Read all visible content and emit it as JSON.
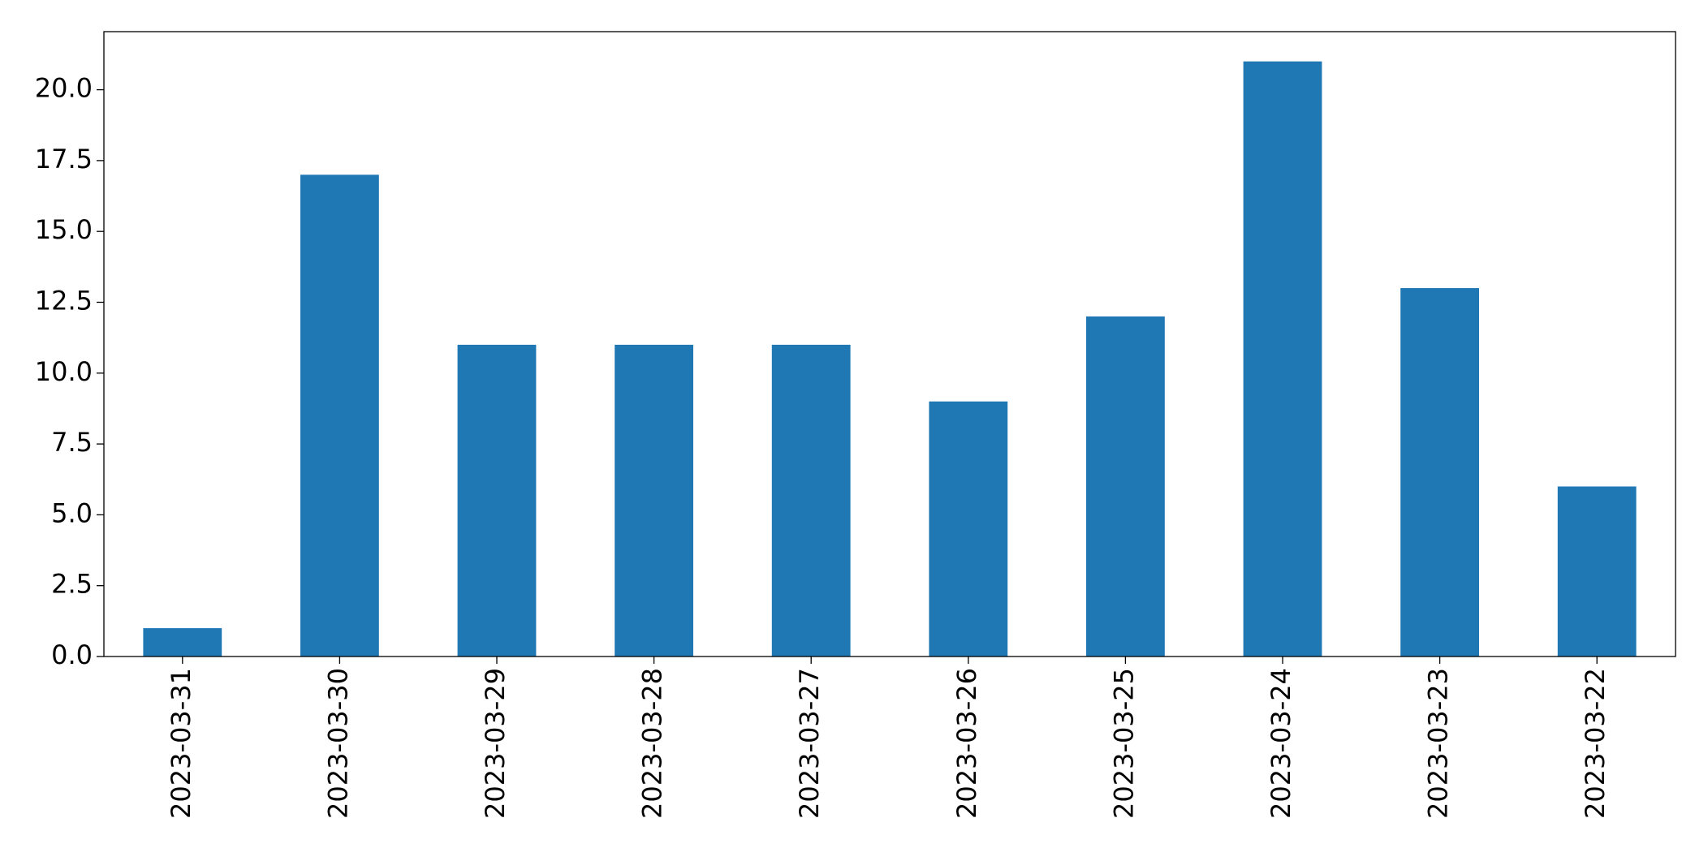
{
  "chart_data": {
    "type": "bar",
    "categories": [
      "2023-03-31",
      "2023-03-30",
      "2023-03-29",
      "2023-03-28",
      "2023-03-27",
      "2023-03-26",
      "2023-03-25",
      "2023-03-24",
      "2023-03-23",
      "2023-03-22"
    ],
    "values": [
      1,
      17,
      11,
      11,
      11,
      9,
      12,
      21,
      13,
      6
    ],
    "color": "#1f77b4",
    "ylim": [
      0,
      22.05
    ],
    "yticks": [
      {
        "value": 0,
        "label": "0.0"
      },
      2.5,
      {
        "value": 5,
        "label": "5.0"
      },
      7.5,
      {
        "value": 10,
        "label": "10.0"
      },
      12.5,
      {
        "value": 15,
        "label": "15.0"
      },
      17.5,
      {
        "value": 20,
        "label": "20.0"
      }
    ],
    "grid": false
  }
}
